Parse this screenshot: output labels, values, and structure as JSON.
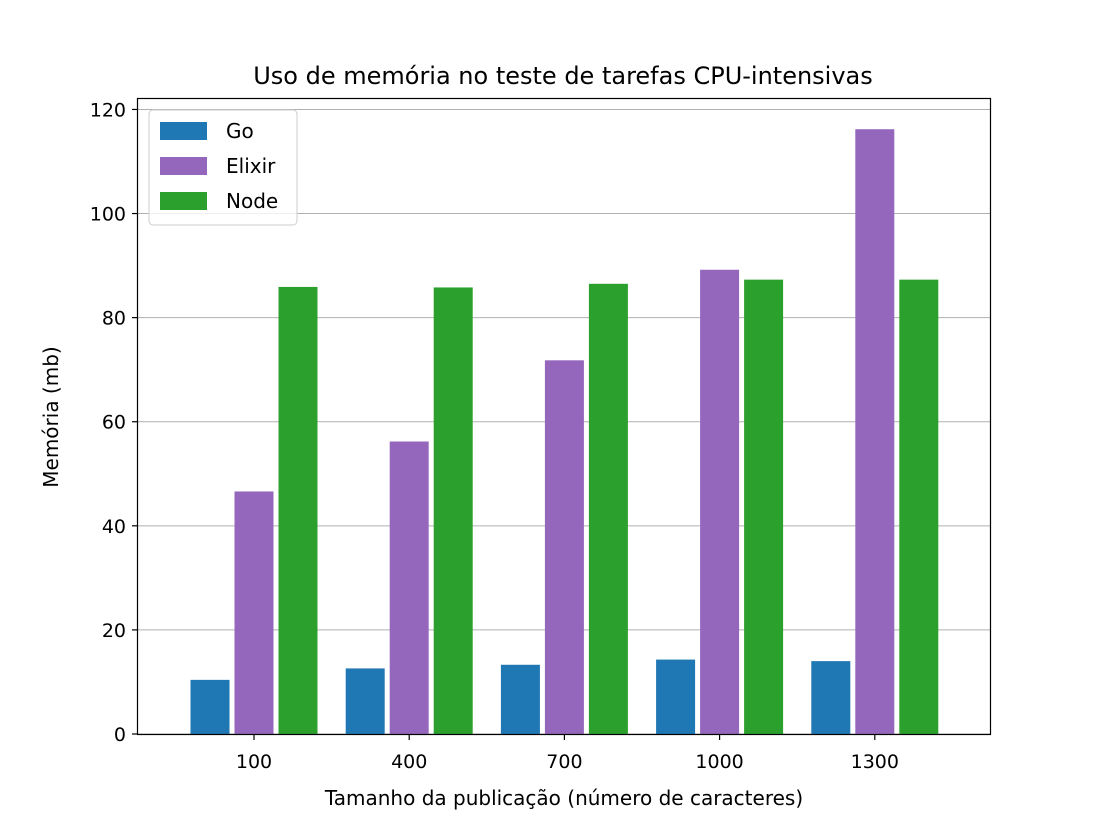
{
  "chart_data": {
    "type": "bar",
    "title": "Uso de memória no teste de tarefas CPU-intensivas",
    "xlabel": "Tamanho da publicação (número de caracteres)",
    "ylabel": "Memória (mb)",
    "categories": [
      "100",
      "400",
      "700",
      "1000",
      "1300"
    ],
    "series": [
      {
        "name": "Go",
        "color": "#1f77b4",
        "values": [
          10.4,
          12.6,
          13.3,
          14.3,
          14.0
        ]
      },
      {
        "name": "Elixir",
        "color": "#9467bd",
        "values": [
          46.6,
          56.2,
          71.8,
          89.2,
          116.2
        ]
      },
      {
        "name": "Node",
        "color": "#2ca02c",
        "values": [
          85.9,
          85.8,
          86.5,
          87.3,
          87.3
        ]
      }
    ],
    "ylim": [
      0,
      122.2
    ],
    "yticks": [
      0,
      20,
      40,
      60,
      80,
      100,
      120
    ],
    "grid": "y",
    "legend": "top-left"
  }
}
